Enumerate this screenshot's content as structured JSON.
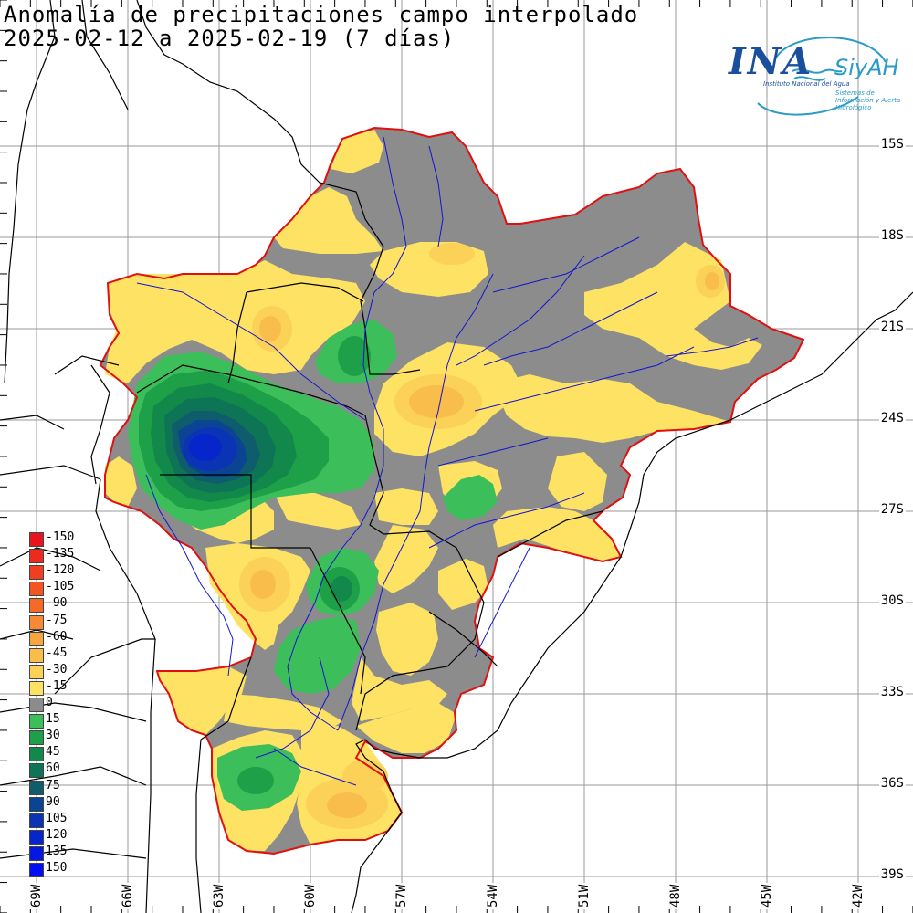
{
  "title": {
    "line1": "Anomalía de precipitaciones campo interpolado",
    "line2": "2025-02-12 a 2025-02-19 (7 días)"
  },
  "logo": {
    "name": "INA",
    "brand": "SiyAH",
    "subtitle": "Instituto Nacional del Agua",
    "tagline": "Sistemas de Información y Alerta Hidrológico"
  },
  "lat_labels": [
    "15S",
    "18S",
    "21S",
    "24S",
    "27S",
    "30S",
    "33S",
    "36S",
    "39S"
  ],
  "lon_labels": [
    "69W",
    "66W",
    "63W",
    "60W",
    "57W",
    "54W",
    "51W",
    "48W",
    "45W",
    "42W"
  ],
  "legend": {
    "entries": [
      {
        "label": "-150",
        "color": "#e8141c"
      },
      {
        "label": "-135",
        "color": "#ec2a1e"
      },
      {
        "label": "-120",
        "color": "#ef3e20"
      },
      {
        "label": "-105",
        "color": "#f25422"
      },
      {
        "label": "-90",
        "color": "#f46a26"
      },
      {
        "label": "-75",
        "color": "#f68a34"
      },
      {
        "label": "-60",
        "color": "#f8a540"
      },
      {
        "label": "-45",
        "color": "#f9bd4c"
      },
      {
        "label": "-30",
        "color": "#fbd158"
      },
      {
        "label": "-15",
        "color": "#fde264"
      },
      {
        "label": "0",
        "color": "#8c8c8c"
      },
      {
        "label": "15",
        "color": "#3cbe5a"
      },
      {
        "label": "30",
        "color": "#1ea048"
      },
      {
        "label": "45",
        "color": "#12884a"
      },
      {
        "label": "60",
        "color": "#0e7456"
      },
      {
        "label": "75",
        "color": "#0e5c6c"
      },
      {
        "label": "90",
        "color": "#0c4494"
      },
      {
        "label": "105",
        "color": "#0a34b4"
      },
      {
        "label": "120",
        "color": "#0626cc"
      },
      {
        "label": "135",
        "color": "#0418e0"
      },
      {
        "label": "150",
        "color": "#0010f0"
      }
    ]
  },
  "colors": {
    "grid": "#9a9a9a",
    "borders": "#000000",
    "rivers": "#1414d2",
    "basin_outline": "#e01010"
  }
}
